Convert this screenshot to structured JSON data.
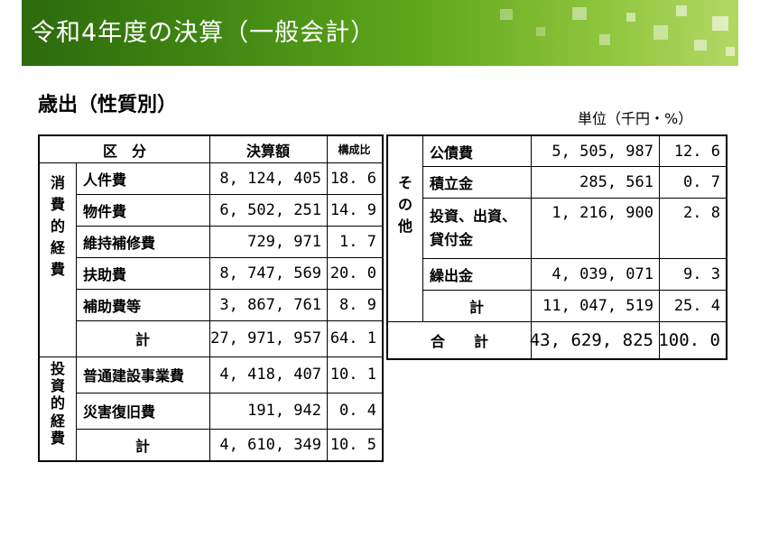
{
  "banner": {
    "title": "令和4年度の決算（一般会計）"
  },
  "section_title": "歳出（性質別）",
  "unit_label": "単位（千円・%）",
  "left_table": {
    "headers": {
      "category": "区　分",
      "amount": "決算額",
      "ratio": "構成比"
    },
    "groups": [
      {
        "label": [
          "消",
          "費",
          "的",
          "経",
          "費"
        ],
        "rows": [
          {
            "name": "人件費",
            "amount": "8, 124, 405",
            "ratio": "18. 6"
          },
          {
            "name": "物件費",
            "amount": "6, 502, 251",
            "ratio": "14. 9"
          },
          {
            "name": "維持補修費",
            "amount": "729, 971",
            "ratio": "1. 7"
          },
          {
            "name": "扶助費",
            "amount": "8, 747, 569",
            "ratio": "20. 0"
          },
          {
            "name": "補助費等",
            "amount": "3, 867, 761",
            "ratio": "8. 9"
          },
          {
            "name": "計",
            "amount": "27, 971, 957",
            "ratio": "64. 1"
          }
        ]
      },
      {
        "label": [
          "投",
          "資",
          "的",
          "経",
          "費"
        ],
        "rows": [
          {
            "name": "普通建設事業費",
            "amount": "4, 418, 407",
            "ratio": "10. 1"
          },
          {
            "name": "災害復旧費",
            "amount": "191, 942",
            "ratio": "0. 4"
          },
          {
            "name": "計",
            "amount": "4, 610, 349",
            "ratio": "10. 5"
          }
        ]
      }
    ]
  },
  "right_table": {
    "group_label": [
      "そ",
      "の",
      "他"
    ],
    "rows": [
      {
        "name": "公債費",
        "amount": "5, 505, 987",
        "ratio": "12. 6"
      },
      {
        "name": "積立金",
        "amount": "285, 561",
        "ratio": "0. 7"
      },
      {
        "name": "投資、出資、",
        "name2": "貸付金",
        "amount": "1, 216, 900",
        "ratio": "2. 8"
      },
      {
        "name": "繰出金",
        "amount": "4, 039, 071",
        "ratio": "9. 3"
      },
      {
        "name": "計",
        "amount": "11, 047, 519",
        "ratio": "25. 4"
      }
    ],
    "total": {
      "name": "合　　計",
      "amount": "43, 629, 825",
      "ratio": "100. 0"
    }
  }
}
